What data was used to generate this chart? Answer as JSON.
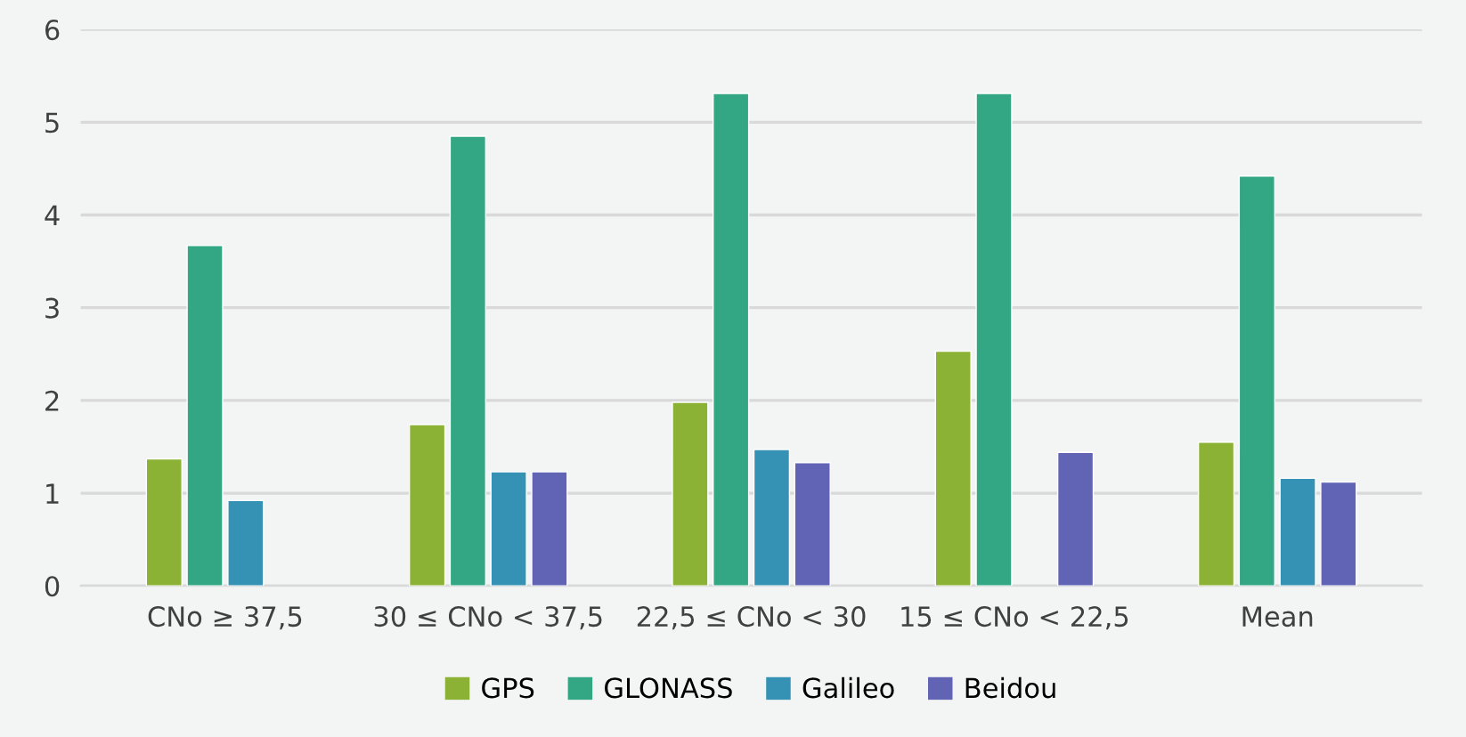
{
  "chart_data": {
    "type": "bar",
    "categories": [
      "CNo ≥ 37,5",
      "30 ≤ CNo < 37,5",
      "22,5 ≤ CNo < 30",
      "15 ≤ CNo < 22,5",
      "Mean"
    ],
    "series": [
      {
        "name": "GPS",
        "color": "#8bb234",
        "values": [
          1.37,
          1.74,
          1.98,
          2.53,
          1.55
        ]
      },
      {
        "name": "GLONASS",
        "color": "#33a683",
        "values": [
          3.67,
          4.85,
          5.31,
          5.31,
          4.42
        ]
      },
      {
        "name": "Galileo",
        "color": "#3592b4",
        "values": [
          0.92,
          1.23,
          1.47,
          null,
          1.16
        ]
      },
      {
        "name": "Beidou",
        "color": "#6163b4",
        "values": [
          null,
          1.23,
          1.33,
          1.44,
          1.12
        ]
      }
    ],
    "ylim": [
      0,
      6
    ],
    "yticks": [
      0,
      1,
      2,
      3,
      4,
      5,
      6
    ],
    "grid": "y",
    "legend": "bottom"
  }
}
